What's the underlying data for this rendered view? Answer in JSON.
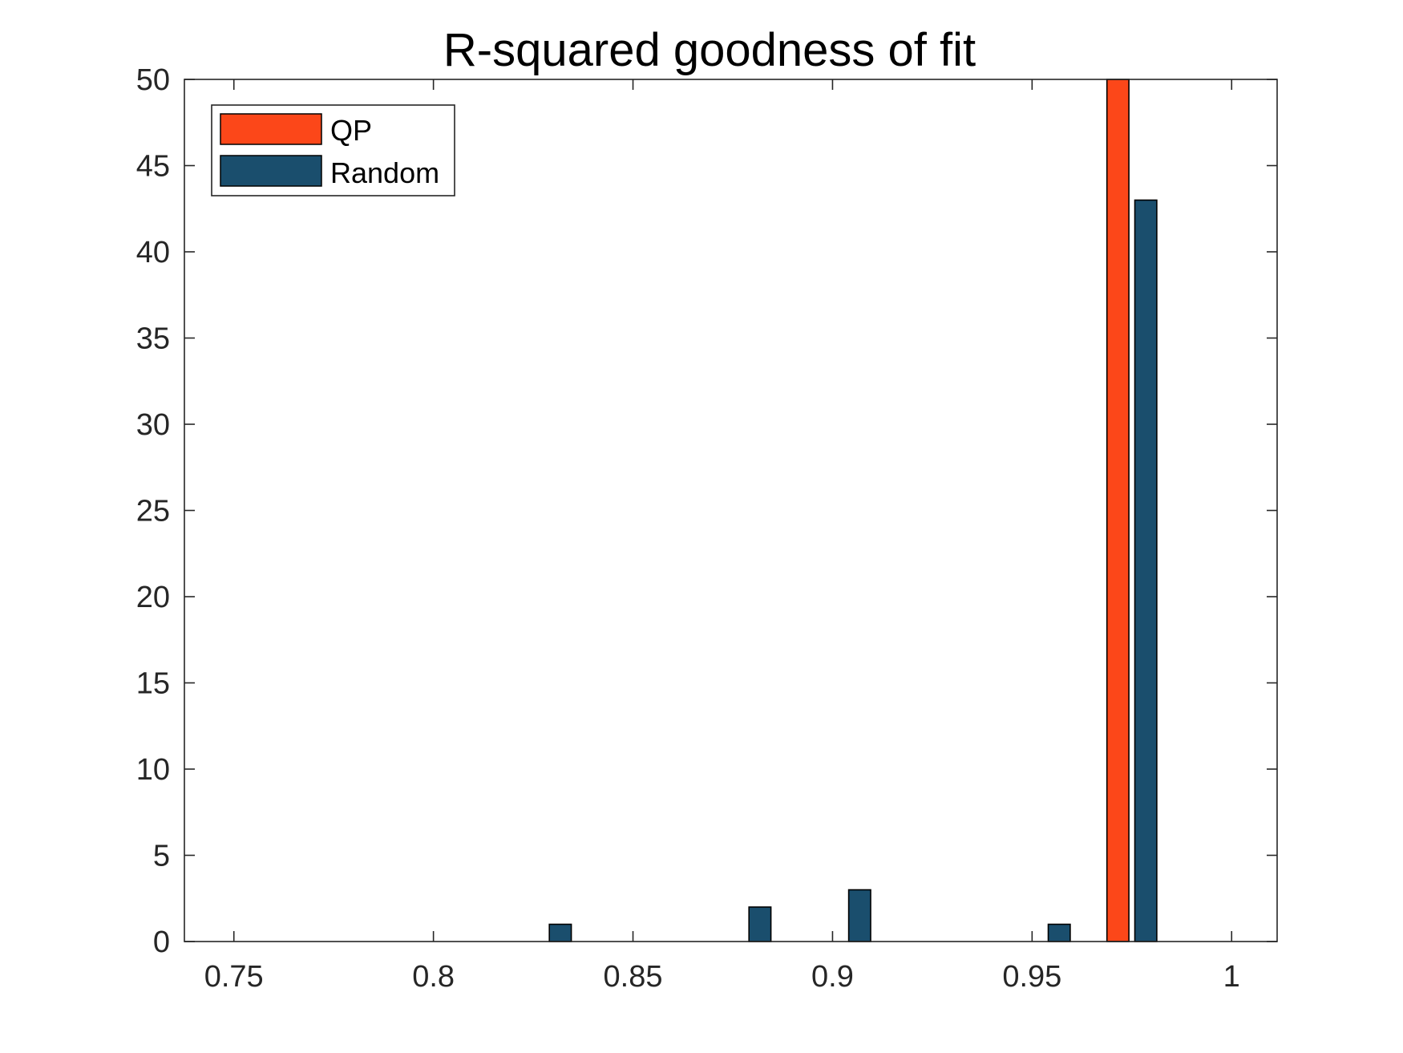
{
  "chart_data": {
    "type": "bar",
    "title": "R-squared goodness of fit",
    "xlabel": "",
    "ylabel": "",
    "xlim": [
      0.7376,
      1.0114
    ],
    "ylim": [
      0,
      50
    ],
    "xticks": [
      0.75,
      0.8,
      0.85,
      0.9,
      0.95,
      1
    ],
    "xtick_labels": [
      "0.75",
      "0.8",
      "0.85",
      "0.9",
      "0.95",
      "1"
    ],
    "yticks": [
      0,
      5,
      10,
      15,
      20,
      25,
      30,
      35,
      40,
      45,
      50
    ],
    "ytick_labels": [
      "0",
      "5",
      "10",
      "15",
      "20",
      "25",
      "30",
      "35",
      "40",
      "45",
      "50"
    ],
    "bar_width": 0.0055,
    "grid": false,
    "legend_position": "top-left",
    "series": [
      {
        "name": "QP",
        "color": "#FC4719",
        "x": [
          0.9715
        ],
        "values": [
          50
        ]
      },
      {
        "name": "Random",
        "color": "#1A4E6D",
        "x": [
          0.8318,
          0.8818,
          0.9068,
          0.9568,
          0.9785
        ],
        "values": [
          1,
          2,
          3,
          1,
          43
        ]
      }
    ]
  }
}
